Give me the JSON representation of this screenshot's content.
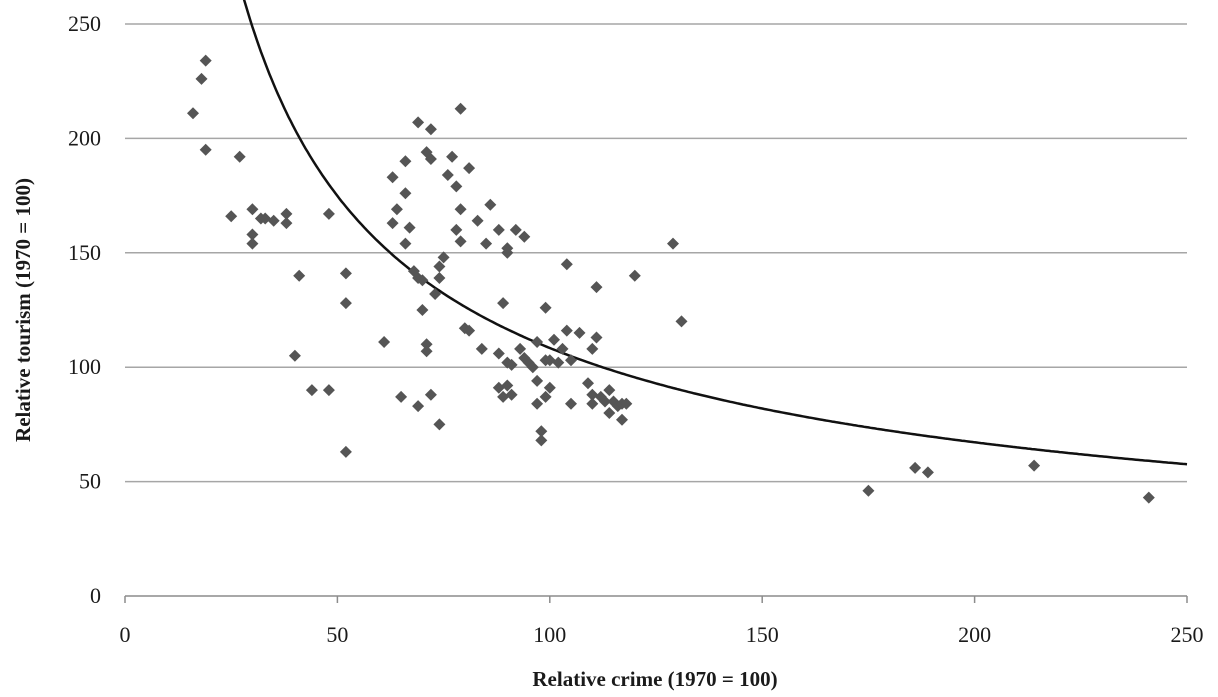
{
  "chart_data": {
    "type": "scatter",
    "title": "",
    "xlabel": "Relative crime (1970 = 100)",
    "ylabel": "Relative tourism (1970 = 100)",
    "xlim": [
      0,
      250
    ],
    "ylim": [
      0,
      250
    ],
    "x_ticks": [
      "0",
      "50",
      "100",
      "150",
      "200",
      "250"
    ],
    "y_ticks": [
      "0",
      "50",
      "100",
      "150",
      "200",
      "250"
    ],
    "grid": "horizontal",
    "legend": "none",
    "marker_color": "#555555",
    "curve_color": "#111111",
    "points": [
      [
        19,
        234
      ],
      [
        18,
        226
      ],
      [
        16,
        211
      ],
      [
        19,
        195
      ],
      [
        27,
        192
      ],
      [
        25,
        166
      ],
      [
        30,
        169
      ],
      [
        30,
        158
      ],
      [
        30,
        154
      ],
      [
        32,
        165
      ],
      [
        33,
        165
      ],
      [
        35,
        164
      ],
      [
        38,
        167
      ],
      [
        38,
        163
      ],
      [
        41,
        140
      ],
      [
        40,
        105
      ],
      [
        44,
        90
      ],
      [
        48,
        90
      ],
      [
        48,
        167
      ],
      [
        52,
        141
      ],
      [
        52,
        128
      ],
      [
        52,
        63
      ],
      [
        61,
        111
      ],
      [
        63,
        183
      ],
      [
        63,
        163
      ],
      [
        64,
        169
      ],
      [
        65,
        87
      ],
      [
        66,
        190
      ],
      [
        66,
        154
      ],
      [
        66,
        176
      ],
      [
        67,
        161
      ],
      [
        68,
        142
      ],
      [
        69,
        207
      ],
      [
        69,
        139
      ],
      [
        70,
        138
      ],
      [
        69,
        83
      ],
      [
        70,
        125
      ],
      [
        71,
        194
      ],
      [
        71,
        110
      ],
      [
        72,
        191
      ],
      [
        72,
        204
      ],
      [
        71,
        107
      ],
      [
        72,
        88
      ],
      [
        74,
        75
      ],
      [
        73,
        132
      ],
      [
        74,
        139
      ],
      [
        74,
        144
      ],
      [
        75,
        148
      ],
      [
        76,
        184
      ],
      [
        77,
        192
      ],
      [
        78,
        179
      ],
      [
        78,
        160
      ],
      [
        79,
        213
      ],
      [
        79,
        155
      ],
      [
        79,
        169
      ],
      [
        80,
        117
      ],
      [
        81,
        187
      ],
      [
        81,
        116
      ],
      [
        83,
        164
      ],
      [
        84,
        108
      ],
      [
        85,
        154
      ],
      [
        86,
        171
      ],
      [
        88,
        160
      ],
      [
        88,
        106
      ],
      [
        88,
        91
      ],
      [
        89,
        87
      ],
      [
        89,
        128
      ],
      [
        90,
        150
      ],
      [
        90,
        102
      ],
      [
        90,
        152
      ],
      [
        90,
        92
      ],
      [
        91,
        88
      ],
      [
        91,
        101
      ],
      [
        92,
        160
      ],
      [
        93,
        108
      ],
      [
        94,
        157
      ],
      [
        94,
        104
      ],
      [
        95,
        102
      ],
      [
        96,
        100
      ],
      [
        97,
        94
      ],
      [
        97,
        84
      ],
      [
        97,
        111
      ],
      [
        98,
        72
      ],
      [
        98,
        68
      ],
      [
        99,
        126
      ],
      [
        99,
        103
      ],
      [
        99,
        87
      ],
      [
        100,
        91
      ],
      [
        100,
        103
      ],
      [
        101,
        112
      ],
      [
        102,
        102
      ],
      [
        103,
        108
      ],
      [
        104,
        145
      ],
      [
        104,
        116
      ],
      [
        105,
        103
      ],
      [
        105,
        84
      ],
      [
        107,
        115
      ],
      [
        109,
        93
      ],
      [
        110,
        108
      ],
      [
        110,
        88
      ],
      [
        110,
        84
      ],
      [
        111,
        135
      ],
      [
        111,
        113
      ],
      [
        112,
        87
      ],
      [
        113,
        85
      ],
      [
        114,
        80
      ],
      [
        114,
        90
      ],
      [
        115,
        85
      ],
      [
        116,
        83
      ],
      [
        117,
        77
      ],
      [
        117,
        84
      ],
      [
        118,
        84
      ],
      [
        120,
        140
      ],
      [
        129,
        154
      ],
      [
        131,
        120
      ],
      [
        175,
        46
      ],
      [
        186,
        56
      ],
      [
        189,
        54
      ],
      [
        214,
        57
      ],
      [
        241,
        43
      ]
    ],
    "fit_curve": {
      "type": "power",
      "a": 2600,
      "b": -0.69,
      "x_start": 21,
      "x_end": 250
    }
  }
}
